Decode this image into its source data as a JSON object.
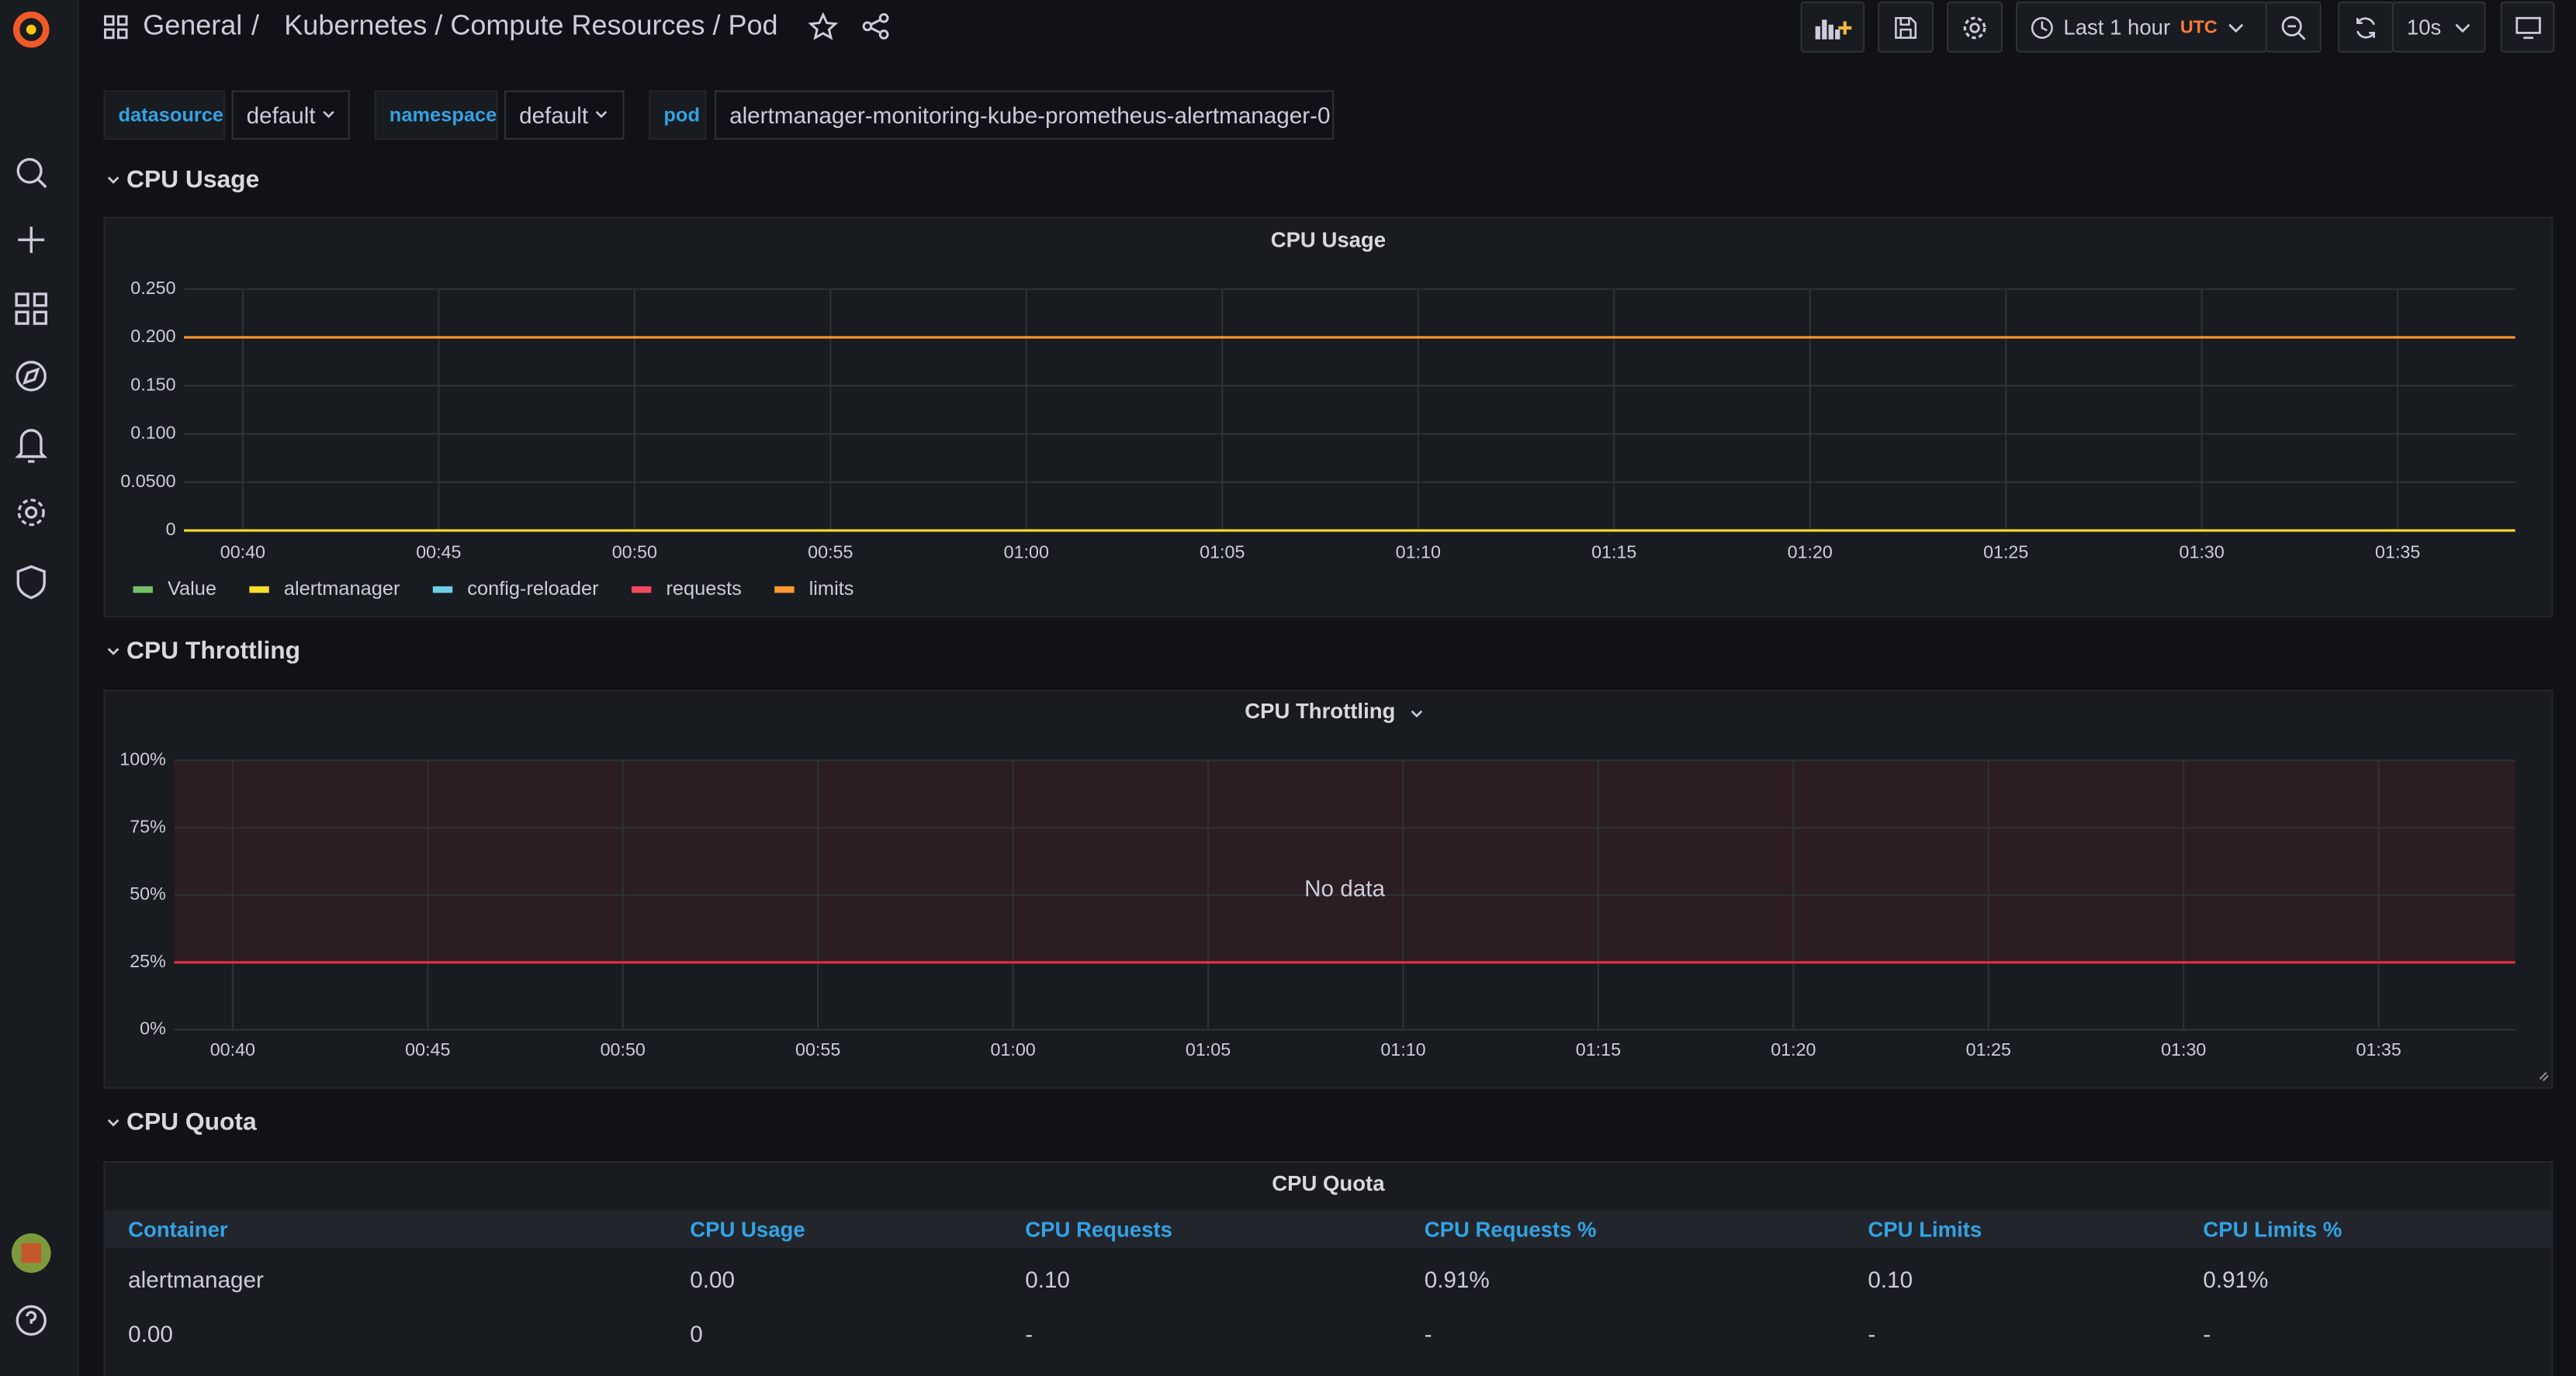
{
  "header": {
    "breadcrumb": [
      "General",
      "/",
      "Kubernetes / Compute Resources / Pod"
    ],
    "time_range": "Last 1 hour",
    "timezone": "UTC",
    "refresh": "10s"
  },
  "variables": [
    {
      "label": "datasource",
      "value": "default"
    },
    {
      "label": "namespace",
      "value": "default"
    },
    {
      "label": "pod",
      "value": "alertmanager-monitoring-kube-prometheus-alertmanager-0"
    }
  ],
  "rows": [
    {
      "title": "CPU Usage",
      "panel": {
        "type": "line",
        "title": "CPU Usage",
        "grid": true,
        "xlim": [
          38.5,
          98
        ],
        "xticks": [
          {
            "value": 40,
            "label": "00:40"
          },
          {
            "value": 45,
            "label": "00:45"
          },
          {
            "value": 50,
            "label": "00:50"
          },
          {
            "value": 55,
            "label": "00:55"
          },
          {
            "value": 60,
            "label": "01:00"
          },
          {
            "value": 65,
            "label": "01:05"
          },
          {
            "value": 70,
            "label": "01:10"
          },
          {
            "value": 75,
            "label": "01:15"
          },
          {
            "value": 80,
            "label": "01:20"
          },
          {
            "value": 85,
            "label": "01:25"
          },
          {
            "value": 90,
            "label": "01:30"
          },
          {
            "value": 95,
            "label": "01:35"
          }
        ],
        "ylim": [
          0,
          0.25
        ],
        "yticks": [
          0,
          {
            "value": 0.05,
            "label": "0.0500"
          },
          {
            "value": 0.1,
            "label": "0.100"
          },
          {
            "value": 0.15,
            "label": "0.150"
          },
          {
            "value": 0.2,
            "label": "0.200"
          },
          {
            "value": 0.25,
            "label": "0.250"
          }
        ],
        "series": [
          {
            "name": "Value",
            "color": "#73bf69",
            "x": [
              38.5,
              98
            ],
            "values": [
              null,
              null
            ]
          },
          {
            "name": "alertmanager",
            "color": "#fade2a",
            "x": [
              38.5,
              98
            ],
            "values": [
              0,
              0
            ]
          },
          {
            "name": "config-reloader",
            "color": "#6ccfe6",
            "x": [
              38.5,
              98
            ],
            "values": [
              null,
              null
            ]
          },
          {
            "name": "requests",
            "color": "#f2495c",
            "x": [
              38.5,
              98
            ],
            "values": [
              null,
              null
            ]
          },
          {
            "name": "limits",
            "color": "#ff9830",
            "x": [
              38.5,
              98
            ],
            "values": [
              0.2,
              0.2
            ]
          }
        ]
      }
    },
    {
      "title": "CPU Throttling",
      "panel": {
        "type": "line",
        "title": "CPU Throttling",
        "grid": true,
        "annotation": "No data",
        "threshold": 25,
        "threshold_color": "#e02f44",
        "xlim": [
          38.5,
          98.5
        ],
        "xticks": [
          {
            "value": 40,
            "label": "00:40"
          },
          {
            "value": 45,
            "label": "00:45"
          },
          {
            "value": 50,
            "label": "00:50"
          },
          {
            "value": 55,
            "label": "00:55"
          },
          {
            "value": 60,
            "label": "01:00"
          },
          {
            "value": 65,
            "label": "01:05"
          },
          {
            "value": 70,
            "label": "01:10"
          },
          {
            "value": 75,
            "label": "01:15"
          },
          {
            "value": 80,
            "label": "01:20"
          },
          {
            "value": 85,
            "label": "01:25"
          },
          {
            "value": 90,
            "label": "01:30"
          },
          {
            "value": 95,
            "label": "01:35"
          }
        ],
        "ylim": [
          0,
          100
        ],
        "yticks": [
          {
            "value": 0,
            "label": "0%"
          },
          {
            "value": 25,
            "label": "25%"
          },
          {
            "value": 50,
            "label": "50%"
          },
          {
            "value": 75,
            "label": "75%"
          },
          {
            "value": 100,
            "label": "100%"
          }
        ],
        "series": []
      }
    },
    {
      "title": "CPU Quota",
      "panel": {
        "title": "CPU Quota",
        "columns": [
          "Container",
          "CPU Usage",
          "CPU Requests",
          "CPU Requests %",
          "CPU Limits",
          "CPU Limits %"
        ],
        "rows": [
          [
            "alertmanager",
            "0.00",
            "0.10",
            "0.91%",
            "0.10",
            "0.91%"
          ],
          [
            "0.00",
            "0",
            "-",
            "-",
            "-",
            "-"
          ]
        ]
      }
    }
  ]
}
